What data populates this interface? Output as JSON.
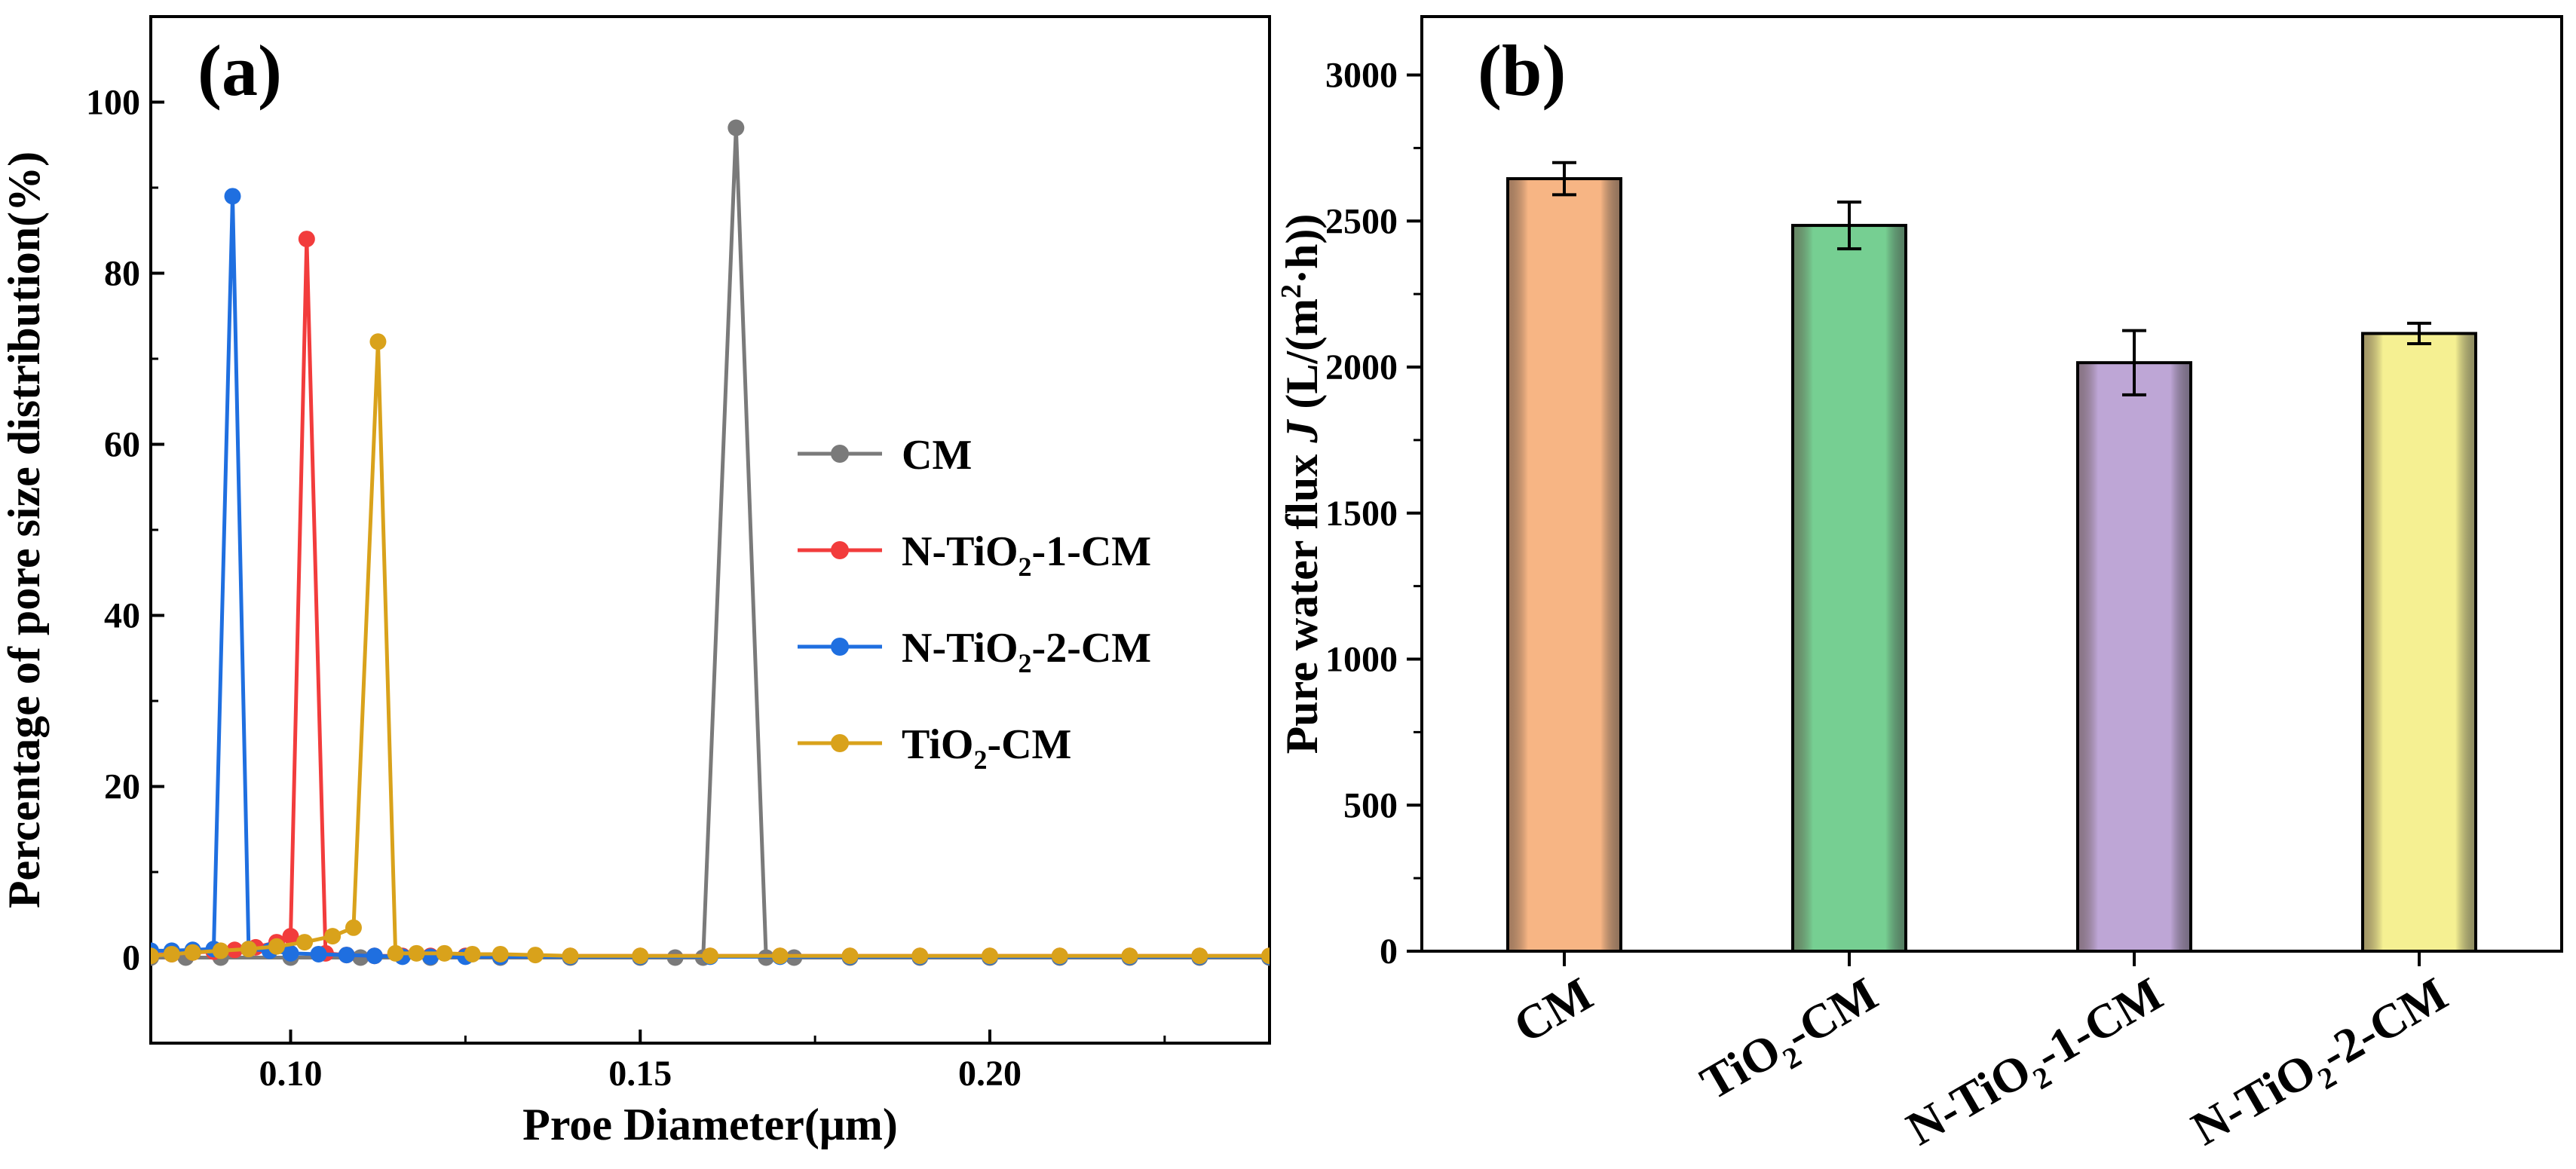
{
  "chart_data": [
    {
      "type": "line",
      "panel_label": "(a)",
      "xlabel": "Proe Diameter(μm)",
      "ylabel": "Percentage of pore size distribution(%)",
      "xlim": [
        0.08,
        0.24
      ],
      "ylim": [
        -10,
        110
      ],
      "xticks": [
        0.1,
        0.15,
        0.2
      ],
      "xtick_labels": [
        "0.10",
        "0.15",
        "0.20"
      ],
      "yticks": [
        0,
        20,
        40,
        60,
        80,
        100
      ],
      "ytick_labels": [
        "0",
        "20",
        "40",
        "60",
        "80",
        "100"
      ],
      "legend_position": "center-right",
      "series": [
        {
          "name": "CM",
          "name_base": "CM",
          "name_sub": "",
          "name_suffix": "",
          "color": "#7a7a7a",
          "x": [
            0.08,
            0.085,
            0.09,
            0.1,
            0.11,
            0.12,
            0.13,
            0.14,
            0.15,
            0.155,
            0.159,
            0.1637,
            0.168,
            0.172,
            0.18,
            0.19,
            0.2,
            0.21,
            0.22,
            0.23,
            0.24
          ],
          "y": [
            0,
            0,
            0,
            0,
            0,
            0,
            0,
            0,
            0,
            0,
            0,
            97,
            0,
            0,
            0,
            0,
            0,
            0,
            0,
            0,
            0
          ]
        },
        {
          "name": "N-TiO2-1-CM",
          "name_base": "N-TiO",
          "name_sub": "2",
          "name_suffix": "-1-CM",
          "color": "#f23c3c",
          "x": [
            0.08,
            0.083,
            0.086,
            0.089,
            0.092,
            0.095,
            0.098,
            0.1,
            0.1023,
            0.105,
            0.108,
            0.112,
            0.116,
            0.12,
            0.125,
            0.13,
            0.14,
            0.15,
            0.16,
            0.17,
            0.18,
            0.19,
            0.2,
            0.21,
            0.22,
            0.23,
            0.24
          ],
          "y": [
            0.3,
            0.4,
            0.6,
            0.7,
            0.9,
            1.2,
            1.8,
            2.5,
            84,
            0.5,
            0.3,
            0.2,
            0.2,
            0.2,
            0.2,
            0.2,
            0.2,
            0.2,
            0.2,
            0.2,
            0.2,
            0.2,
            0.2,
            0.2,
            0.2,
            0.2,
            0.2
          ]
        },
        {
          "name": "N-TiO2-2-CM",
          "name_base": "N-TiO",
          "name_sub": "2",
          "name_suffix": "-2-CM",
          "color": "#1f6fe0",
          "x": [
            0.08,
            0.083,
            0.086,
            0.089,
            0.0917,
            0.094,
            0.097,
            0.1,
            0.104,
            0.108,
            0.112,
            0.116,
            0.12,
            0.125,
            0.13,
            0.14,
            0.15,
            0.16,
            0.17,
            0.18,
            0.19,
            0.2,
            0.21,
            0.22,
            0.23,
            0.24
          ],
          "y": [
            0.8,
            0.8,
            0.9,
            1.0,
            89,
            1.0,
            0.8,
            0.5,
            0.4,
            0.3,
            0.2,
            0.1,
            0.1,
            0.1,
            0.1,
            0.1,
            0.1,
            0.1,
            0.1,
            0.1,
            0.1,
            0.1,
            0.1,
            0.1,
            0.1,
            0.1
          ]
        },
        {
          "name": "TiO2-CM",
          "name_base": "TiO",
          "name_sub": "2",
          "name_suffix": "-CM",
          "color": "#d9a21b",
          "x": [
            0.08,
            0.083,
            0.086,
            0.09,
            0.094,
            0.098,
            0.102,
            0.106,
            0.109,
            0.1125,
            0.115,
            0.118,
            0.122,
            0.126,
            0.13,
            0.135,
            0.14,
            0.15,
            0.16,
            0.17,
            0.18,
            0.19,
            0.2,
            0.21,
            0.22,
            0.23,
            0.24
          ],
          "y": [
            0.2,
            0.4,
            0.6,
            0.8,
            1.0,
            1.3,
            1.8,
            2.5,
            3.5,
            72,
            0.5,
            0.5,
            0.5,
            0.4,
            0.4,
            0.3,
            0.2,
            0.2,
            0.2,
            0.2,
            0.2,
            0.2,
            0.2,
            0.2,
            0.2,
            0.2,
            0.2
          ]
        }
      ]
    },
    {
      "type": "bar",
      "panel_label": "(b)",
      "ylabel_pre": "Pure water flux ",
      "ylabel_var": "J",
      "ylabel_unit_pre": " (L/(m",
      "ylabel_unit_sup": "2",
      "ylabel_unit_post": "·h))",
      "ylim": [
        0,
        3200
      ],
      "yticks": [
        0,
        500,
        1000,
        1500,
        2000,
        2500,
        3000
      ],
      "ytick_labels": [
        "0",
        "500",
        "1000",
        "1500",
        "2000",
        "2500",
        "3000"
      ],
      "categories": [
        {
          "base": "CM",
          "sub": "",
          "suffix": ""
        },
        {
          "base": "TiO",
          "sub": "2",
          "suffix": "-CM"
        },
        {
          "base": "N-TiO",
          "sub": "2",
          "suffix": "-1-CM"
        },
        {
          "base": "N-TiO",
          "sub": "2",
          "suffix": "-2-CM"
        }
      ],
      "category_names": [
        "CM",
        "TiO2-CM",
        "N-TiO2-1-CM",
        "N-TiO2-2-CM"
      ],
      "values": [
        2645,
        2485,
        2015,
        2115
      ],
      "errors": [
        55,
        80,
        110,
        35
      ],
      "colors": [
        "#f7b584",
        "#76cf92",
        "#bea6d6",
        "#f5f092"
      ]
    }
  ]
}
